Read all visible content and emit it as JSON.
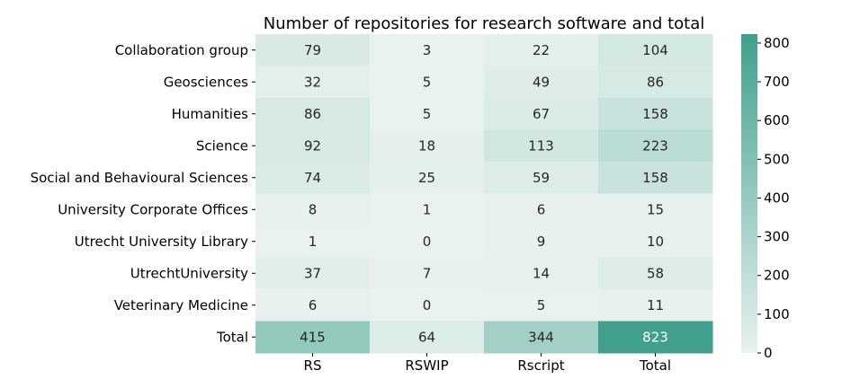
{
  "chart_data": {
    "type": "heatmap",
    "title": "Number of repositories for research software and total",
    "rows": [
      "Collaboration group",
      "Geosciences",
      "Humanities",
      "Science",
      "Social and Behavioural Sciences",
      "University Corporate Offices",
      "Utrecht University Library",
      "UtrechtUniversity",
      "Veterinary Medicine",
      "Total"
    ],
    "columns": [
      "RS",
      "RSWIP",
      "Rscript",
      "Total"
    ],
    "values": [
      [
        79,
        3,
        22,
        104
      ],
      [
        32,
        5,
        49,
        86
      ],
      [
        86,
        5,
        67,
        158
      ],
      [
        92,
        18,
        113,
        223
      ],
      [
        74,
        25,
        59,
        158
      ],
      [
        8,
        1,
        6,
        15
      ],
      [
        1,
        0,
        9,
        10
      ],
      [
        37,
        7,
        14,
        58
      ],
      [
        6,
        0,
        5,
        11
      ],
      [
        415,
        64,
        344,
        823
      ]
    ],
    "colorbar": {
      "range": [
        0,
        823
      ],
      "ticks": [
        0,
        100,
        200,
        300,
        400,
        500,
        600,
        700,
        800
      ],
      "color_low": "#e9f2f0",
      "color_high": "#40a08b"
    }
  }
}
